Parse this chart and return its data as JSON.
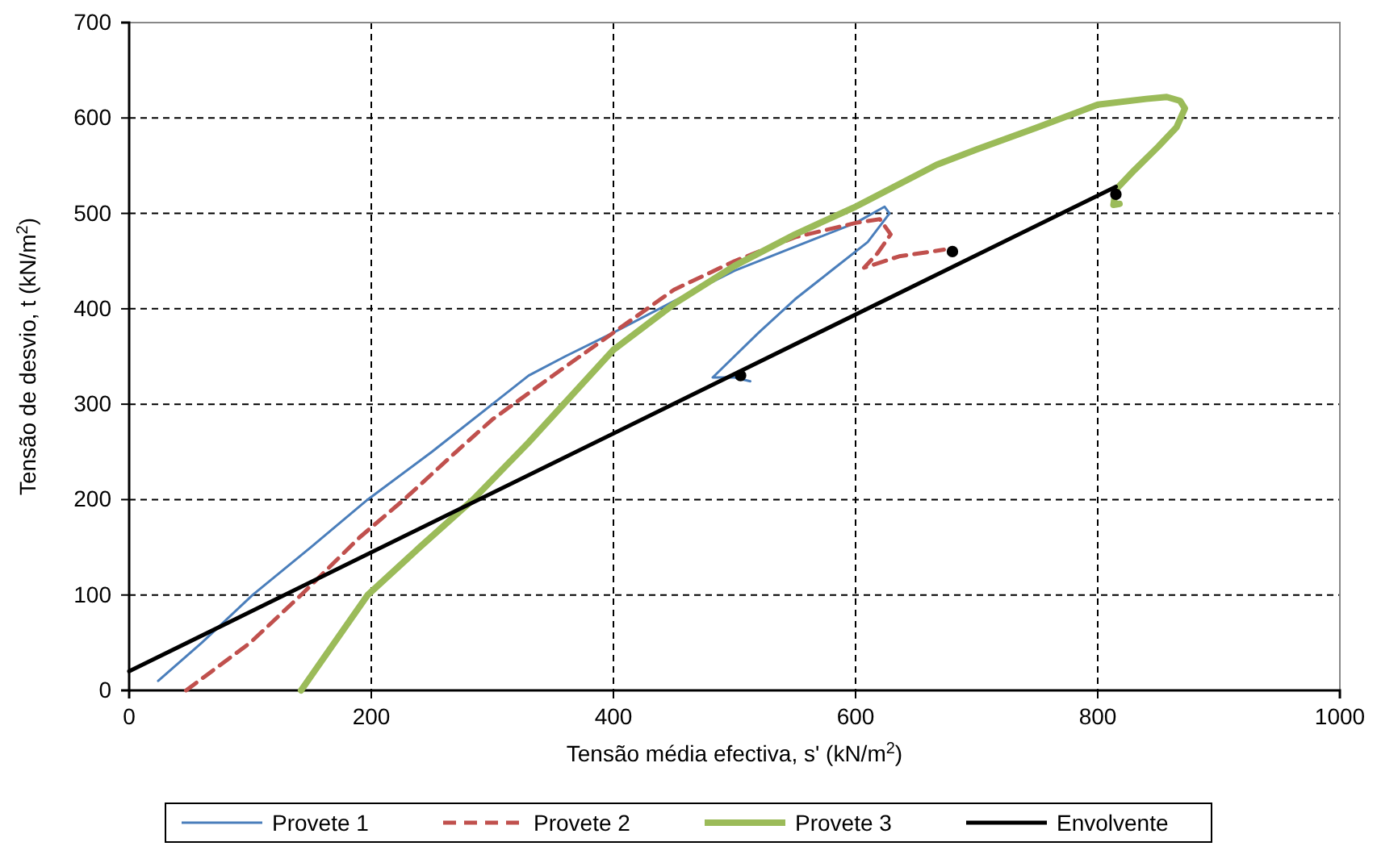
{
  "chart_data": {
    "type": "line",
    "xlabel": "Tensão média efectiva, s' (kN/m$^{2}$)",
    "ylabel": "Tensão de desvio, t (kN/m$^{2}$)",
    "xlim": [
      0,
      1000
    ],
    "xticks": [
      0,
      200,
      400,
      600,
      800,
      1000
    ],
    "ylim": [
      0,
      700
    ],
    "yticks": [
      0,
      100,
      200,
      300,
      400,
      500,
      600,
      700
    ],
    "grid": true,
    "legend": "bottom",
    "series": [
      {
        "name": "Provete 1",
        "color": "#4a7ebb",
        "line_style": "solid",
        "x": [
          24,
          60,
          102,
          150,
          197,
          250,
          300,
          330,
          360,
          400,
          450,
          500,
          550,
          600,
          624,
          628,
          610,
          580,
          550,
          520,
          482,
          500,
          513
        ],
        "values": [
          10,
          50,
          100,
          150,
          200,
          250,
          300,
          330,
          350,
          375,
          408,
          440,
          465,
          490,
          507,
          500,
          470,
          440,
          410,
          375,
          328,
          328,
          324
        ]
      },
      {
        "name": "Provete 2",
        "color": "#c0504d",
        "line_style": "dashed",
        "x": [
          47,
          100,
          142,
          190,
          227,
          270,
          300,
          350,
          400,
          450,
          500,
          550,
          600,
          620,
          629,
          618,
          607,
          636,
          663,
          673
        ],
        "values": [
          0,
          50,
          100,
          160,
          200,
          250,
          284,
          330,
          375,
          420,
          450,
          475,
          490,
          494,
          478,
          458,
          443,
          455,
          460,
          462
        ]
      },
      {
        "name": "Provete 3",
        "color": "#9bbb59",
        "line_style": "solid",
        "x": [
          142,
          197,
          240,
          284,
          330,
          400,
          450,
          500,
          550,
          600,
          667,
          700,
          750,
          800,
          840,
          857,
          868,
          872,
          865,
          850,
          830,
          815,
          813,
          818
        ],
        "values": [
          0,
          100,
          150,
          200,
          260,
          357,
          405,
          445,
          478,
          507,
          551,
          567,
          590,
          614,
          620,
          622,
          618,
          610,
          590,
          570,
          545,
          525,
          509,
          510
        ]
      },
      {
        "name": "Envolvente",
        "color": "#000000",
        "line_style": "solid",
        "x": [
          0,
          815
        ],
        "values": [
          20,
          528
        ]
      },
      {
        "type": "scatter",
        "color": "#000000",
        "marker": "circle",
        "x": [
          505,
          680,
          815
        ],
        "values": [
          330,
          460,
          520
        ]
      }
    ]
  }
}
